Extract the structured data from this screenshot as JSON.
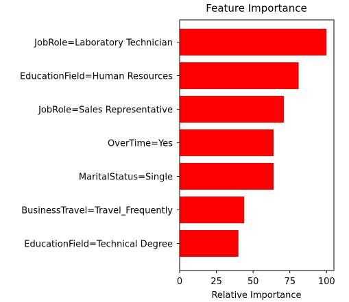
{
  "chart_data": {
    "type": "bar",
    "orientation": "horizontal",
    "title": "Feature Importance",
    "xlabel": "Relative Importance",
    "ylabel": "",
    "categories": [
      "JobRole=Laboratory Technician",
      "EducationField=Human Resources",
      "JobRole=Sales Representative",
      "OverTime=Yes",
      "MaritalStatus=Single",
      "BusinessTravel=Travel_Frequently",
      "EducationField=Technical Degree"
    ],
    "values": [
      100,
      81,
      71,
      64,
      64,
      44,
      40
    ],
    "xlim": [
      0,
      105
    ],
    "xticks": [
      "0",
      "25",
      "50",
      "75",
      "100"
    ],
    "grid": false,
    "bar_color": "#ff0000"
  }
}
